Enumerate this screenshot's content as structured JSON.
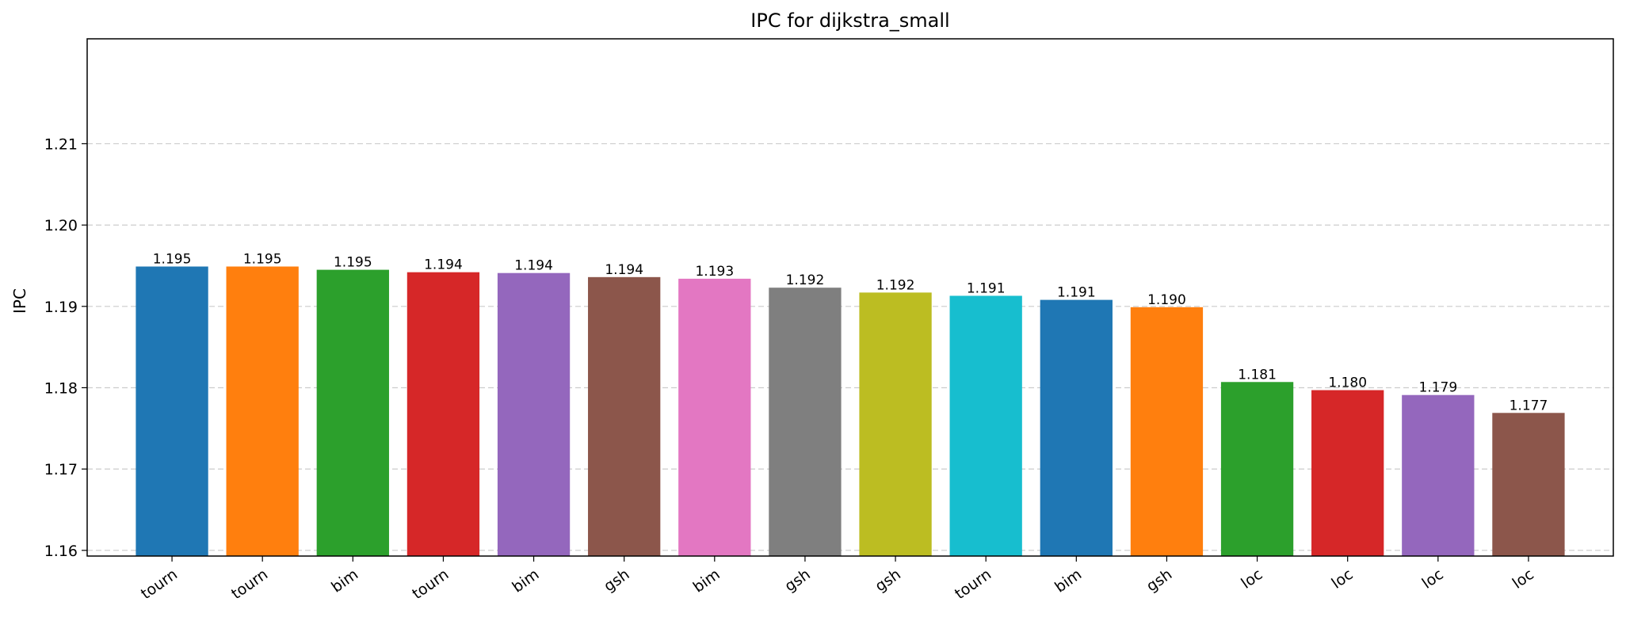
{
  "chart_data": {
    "type": "bar",
    "title": "IPC for dijkstra_small",
    "xlabel": "",
    "ylabel": "IPC",
    "categories": [
      "tourn",
      "tourn",
      "bim",
      "tourn",
      "bim",
      "gsh",
      "bim",
      "gsh",
      "gsh",
      "tourn",
      "bim",
      "gsh",
      "loc",
      "loc",
      "loc",
      "loc"
    ],
    "values": [
      1.1949,
      1.1949,
      1.1945,
      1.1942,
      1.1941,
      1.1936,
      1.1934,
      1.1923,
      1.1917,
      1.1913,
      1.1908,
      1.1899,
      1.1807,
      1.1797,
      1.1791,
      1.1769
    ],
    "value_labels": [
      "1.195",
      "1.195",
      "1.195",
      "1.194",
      "1.194",
      "1.194",
      "1.193",
      "1.192",
      "1.192",
      "1.191",
      "1.191",
      "1.190",
      "1.181",
      "1.180",
      "1.179",
      "1.177"
    ],
    "colors": [
      "#1f77b4",
      "#ff7f0e",
      "#2ca02c",
      "#d62728",
      "#9467bd",
      "#8c564b",
      "#e377c2",
      "#7f7f7f",
      "#bcbd22",
      "#17becf",
      "#1f77b4",
      "#ff7f0e",
      "#2ca02c",
      "#d62728",
      "#9467bd",
      "#8c564b"
    ],
    "ylim": [
      1.1593,
      1.2229
    ],
    "yticks": [
      1.16,
      1.17,
      1.18,
      1.19,
      1.2,
      1.21
    ],
    "ytick_labels": [
      "1.16",
      "1.17",
      "1.18",
      "1.19",
      "1.20",
      "1.21"
    ],
    "grid": "y-dashed",
    "grid_color": "#cccccc",
    "legend": "none"
  }
}
